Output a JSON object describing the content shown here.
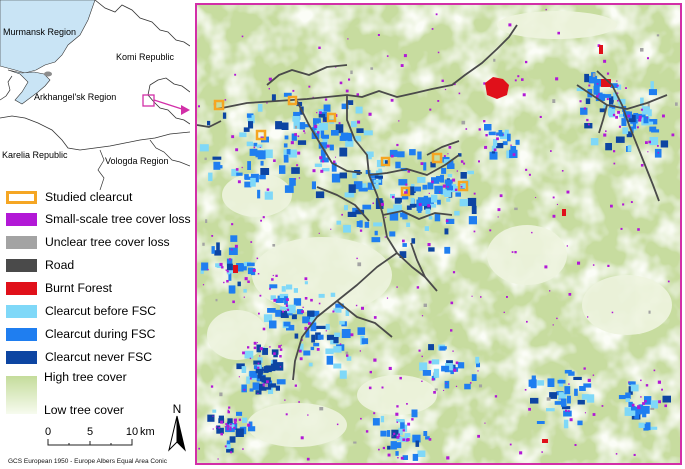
{
  "inset": {
    "regions": [
      "Murmansk Region",
      "Komi Republic",
      "Arkhangel'sk Region",
      "Karelia Republic",
      "Vologda Region"
    ]
  },
  "legend": {
    "items": [
      {
        "label": "Studied clearcut",
        "color": "#f5a623",
        "style": "outline"
      },
      {
        "label": "Small-scale tree cover loss",
        "color": "#b218d6",
        "style": "fill"
      },
      {
        "label": "Unclear tree cover loss",
        "color": "#a3a3a3",
        "style": "fill"
      },
      {
        "label": "Road",
        "color": "#4a4a4a",
        "style": "fill"
      },
      {
        "label": "Burnt Forest",
        "color": "#e0101a",
        "style": "fill"
      },
      {
        "label": "Clearcut before FSC",
        "color": "#7fd8f8",
        "style": "fill"
      },
      {
        "label": "Clearcut during FSC",
        "color": "#1f7ef0",
        "style": "fill"
      },
      {
        "label": "Clearcut never FSC",
        "color": "#0d45a2",
        "style": "fill"
      }
    ],
    "ramp_high": "High tree cover",
    "ramp_low": "Low tree cover",
    "ramp_colors": [
      "#c4dc9b",
      "#f7fbef"
    ]
  },
  "scale": {
    "labels": [
      "0",
      "5",
      "10"
    ],
    "unit": "km"
  },
  "north": "N",
  "credit": "GCS European 1950 - Europe Albers Equal Area Conic",
  "colors": {
    "frame": "#d22fa8",
    "water": "#c9e4f5",
    "land": "#ffffff",
    "forest_high": "#c7dc9f",
    "forest_low": "#f4f8ea"
  }
}
